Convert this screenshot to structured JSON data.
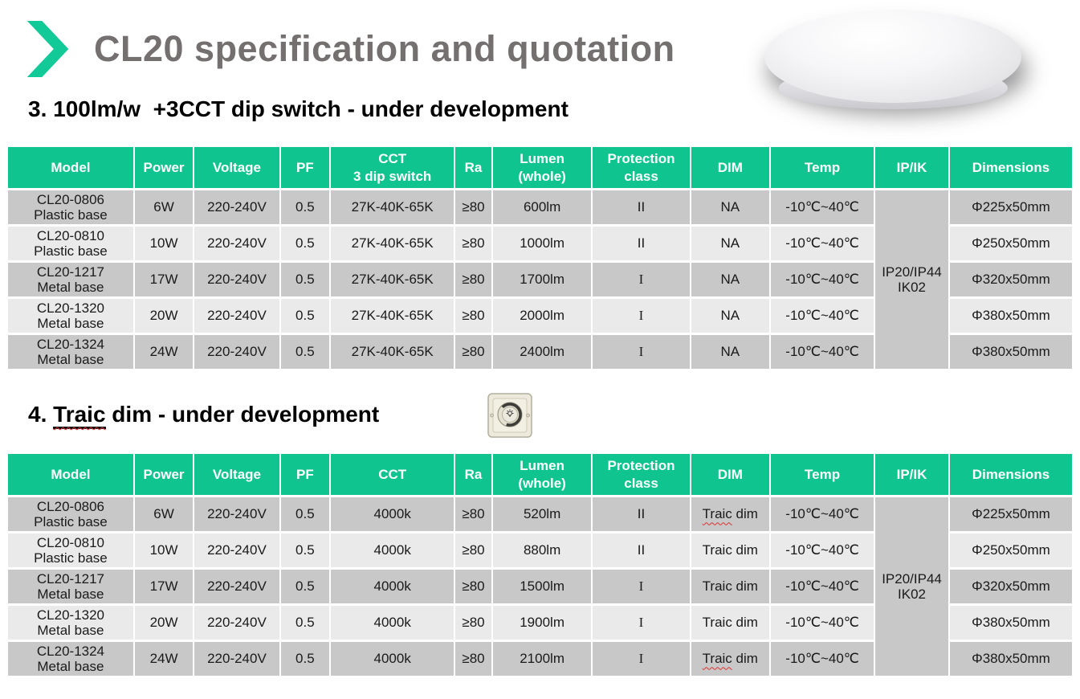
{
  "title": {
    "text": "CL20 specification and quotation"
  },
  "colors": {
    "accent_green": "#10c48f",
    "chevron_teal": "#12c998",
    "title_gray": "#747070",
    "row_dark": "#c8c8c8",
    "row_light": "#eaeaea",
    "spellcheck_red": "#e03131"
  },
  "sections": [
    {
      "heading": {
        "text": "3. 100lm/w  +3CCT dip switch - under development"
      },
      "table": {
        "columns": [
          [
            "Model"
          ],
          [
            "Power"
          ],
          [
            "Voltage"
          ],
          [
            "PF"
          ],
          [
            "CCT",
            "3 dip switch"
          ],
          [
            "Ra"
          ],
          [
            "Lumen",
            "(whole)"
          ],
          [
            "Protection",
            "class"
          ],
          [
            "DIM"
          ],
          [
            "Temp"
          ],
          [
            "IP/IK"
          ],
          [
            "Dimensions"
          ]
        ],
        "ip_ik": [
          "IP20/IP44",
          "IK02"
        ],
        "rows": [
          {
            "model": [
              "CL20-0806",
              "Plastic base"
            ],
            "power": "6W",
            "voltage": "220-240V",
            "pf": "0.5",
            "cct": "27K-40K-65K",
            "ra": "≥80",
            "lumen": "600lm",
            "protection": "II",
            "protection_serif": false,
            "dim": "NA",
            "dim_squiggle": false,
            "temp": "-10℃~40℃",
            "dimensions": "Φ225x50mm"
          },
          {
            "model": [
              "CL20-0810",
              "Plastic base"
            ],
            "power": "10W",
            "voltage": "220-240V",
            "pf": "0.5",
            "cct": "27K-40K-65K",
            "ra": "≥80",
            "lumen": "1000lm",
            "protection": "II",
            "protection_serif": false,
            "dim": "NA",
            "dim_squiggle": false,
            "temp": "-10℃~40℃",
            "dimensions": "Φ250x50mm"
          },
          {
            "model": [
              "CL20-1217",
              "Metal base"
            ],
            "power": "17W",
            "voltage": "220-240V",
            "pf": "0.5",
            "cct": "27K-40K-65K",
            "ra": "≥80",
            "lumen": "1700lm",
            "protection": "I",
            "protection_serif": true,
            "dim": "NA",
            "dim_squiggle": false,
            "temp": "-10℃~40℃",
            "dimensions": "Φ320x50mm"
          },
          {
            "model": [
              "CL20-1320",
              "Metal base"
            ],
            "power": "20W",
            "voltage": "220-240V",
            "pf": "0.5",
            "cct": "27K-40K-65K",
            "ra": "≥80",
            "lumen": "2000lm",
            "protection": "I",
            "protection_serif": true,
            "dim": "NA",
            "dim_squiggle": false,
            "temp": "-10℃~40℃",
            "dimensions": "Φ380x50mm"
          },
          {
            "model": [
              "CL20-1324",
              "Metal base"
            ],
            "power": "24W",
            "voltage": "220-240V",
            "pf": "0.5",
            "cct": "27K-40K-65K",
            "ra": "≥80",
            "lumen": "2400lm",
            "protection": "I",
            "protection_serif": true,
            "dim": "NA",
            "dim_squiggle": false,
            "temp": "-10℃~40℃",
            "dimensions": "Φ380x50mm"
          }
        ]
      }
    },
    {
      "heading": {
        "prefix": "4. ",
        "underlined": "Traic",
        "rest": " dim - under development"
      },
      "table": {
        "columns": [
          [
            "Model"
          ],
          [
            "Power"
          ],
          [
            "Voltage"
          ],
          [
            "PF"
          ],
          [
            "CCT"
          ],
          [
            "Ra"
          ],
          [
            "Lumen",
            "(whole)"
          ],
          [
            "Protection",
            "class"
          ],
          [
            "DIM"
          ],
          [
            "Temp"
          ],
          [
            "IP/IK"
          ],
          [
            "Dimensions"
          ]
        ],
        "ip_ik": [
          "IP20/IP44",
          "IK02"
        ],
        "rows": [
          {
            "model": [
              "CL20-0806",
              "Plastic base"
            ],
            "power": "6W",
            "voltage": "220-240V",
            "pf": "0.5",
            "cct": "4000k",
            "ra": "≥80",
            "lumen": "520lm",
            "protection": "II",
            "protection_serif": false,
            "dim": "Traic dim",
            "dim_squiggle": true,
            "temp": "-10℃~40℃",
            "dimensions": "Φ225x50mm"
          },
          {
            "model": [
              "CL20-0810",
              "Plastic base"
            ],
            "power": "10W",
            "voltage": "220-240V",
            "pf": "0.5",
            "cct": "4000k",
            "ra": "≥80",
            "lumen": "880lm",
            "protection": "II",
            "protection_serif": false,
            "dim": "Traic dim",
            "dim_squiggle": false,
            "temp": "-10℃~40℃",
            "dimensions": "Φ250x50mm"
          },
          {
            "model": [
              "CL20-1217",
              "Metal base"
            ],
            "power": "17W",
            "voltage": "220-240V",
            "pf": "0.5",
            "cct": "4000k",
            "ra": "≥80",
            "lumen": "1500lm",
            "protection": "I",
            "protection_serif": true,
            "dim": "Traic dim",
            "dim_squiggle": false,
            "temp": "-10℃~40℃",
            "dimensions": "Φ320x50mm"
          },
          {
            "model": [
              "CL20-1320",
              "Metal base"
            ],
            "power": "20W",
            "voltage": "220-240V",
            "pf": "0.5",
            "cct": "4000k",
            "ra": "≥80",
            "lumen": "1900lm",
            "protection": "I",
            "protection_serif": true,
            "dim": "Traic dim",
            "dim_squiggle": false,
            "temp": "-10℃~40℃",
            "dimensions": "Φ380x50mm"
          },
          {
            "model": [
              "CL20-1324",
              "Metal base"
            ],
            "power": "24W",
            "voltage": "220-240V",
            "pf": "0.5",
            "cct": "4000k",
            "ra": "≥80",
            "lumen": "2100lm",
            "protection": "I",
            "protection_serif": true,
            "dim": "Traic dim",
            "dim_squiggle": true,
            "temp": "-10℃~40℃",
            "dimensions": "Φ380x50mm"
          }
        ]
      }
    }
  ]
}
